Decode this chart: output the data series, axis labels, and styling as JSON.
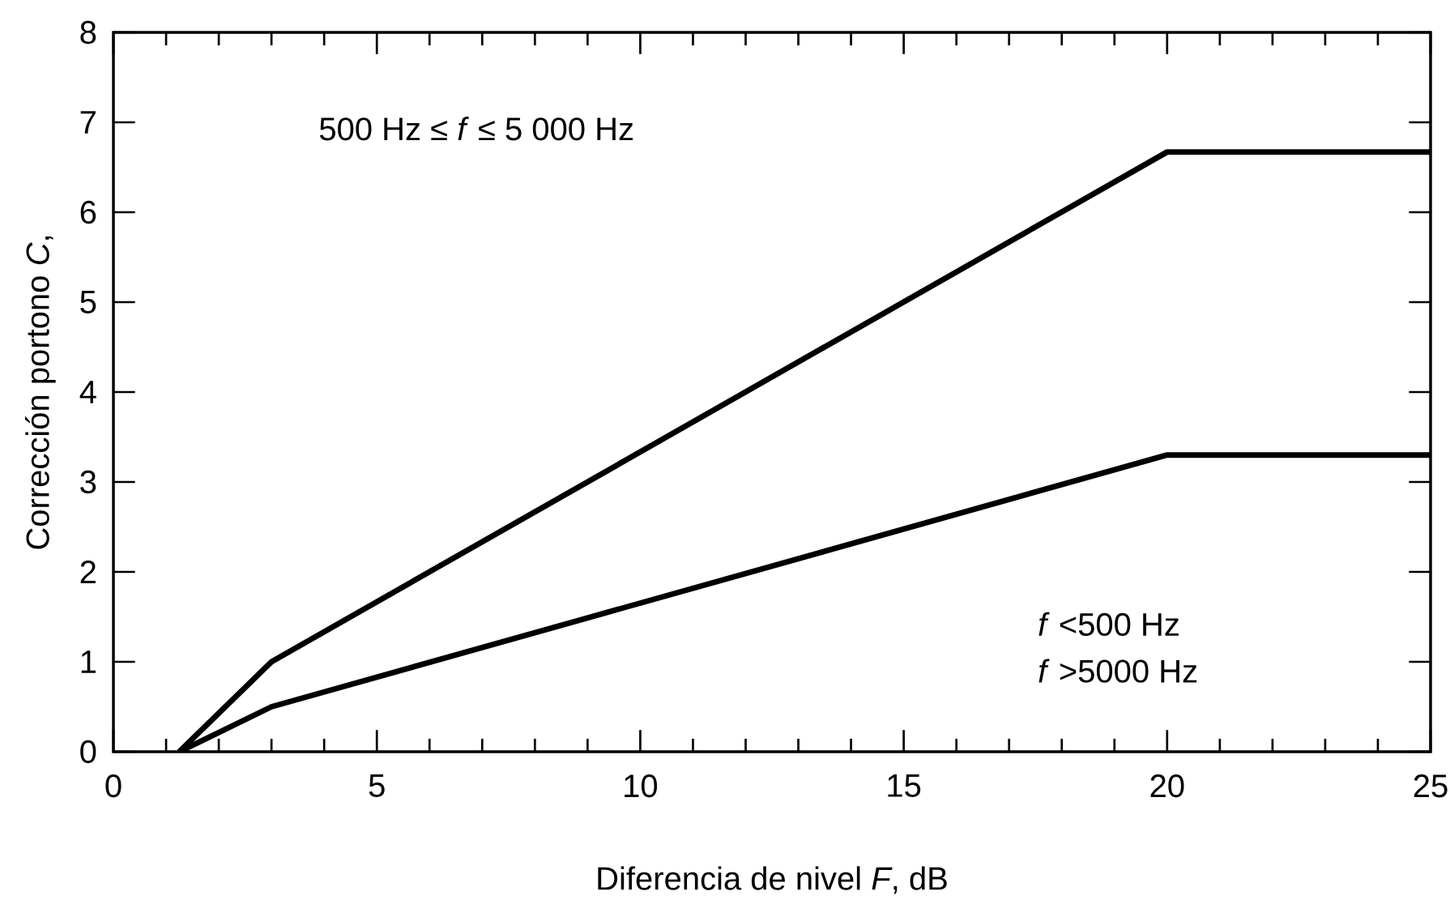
{
  "chart_data": {
    "type": "line",
    "xlabel": "Diferencia de nivel *F*, dB",
    "ylabel": "Corrección portono *C*,",
    "annotations": [
      "500 Hz ≤ *f* ≤ 5 000 Hz",
      "*f* <500 Hz",
      "*f* >5000 Hz"
    ],
    "series": [
      {
        "color": "#000000",
        "x": [
          1.25,
          3,
          20,
          25
        ],
        "values": [
          0,
          1,
          6.67,
          6.67
        ]
      },
      {
        "color": "#000000",
        "x": [
          1.25,
          3,
          20,
          25
        ],
        "values": [
          0,
          0.5,
          3.3,
          3.3
        ]
      }
    ],
    "xlim": [
      0,
      25
    ],
    "ylim": [
      0,
      8
    ],
    "xticks": [
      0,
      {
        "value": 1,
        "label": null
      },
      {
        "value": 2,
        "label": null
      },
      {
        "value": 3,
        "label": null
      },
      {
        "value": 4,
        "label": null
      },
      5,
      {
        "value": 6,
        "label": null
      },
      {
        "value": 7,
        "label": null
      },
      {
        "value": 8,
        "label": null
      },
      {
        "value": 9,
        "label": null
      },
      10,
      {
        "value": 11,
        "label": null
      },
      {
        "value": 12,
        "label": null
      },
      {
        "value": 13,
        "label": null
      },
      {
        "value": 14,
        "label": null
      },
      15,
      {
        "value": 16,
        "label": null
      },
      {
        "value": 17,
        "label": null
      },
      {
        "value": 18,
        "label": null
      },
      {
        "value": 19,
        "label": null
      },
      20,
      {
        "value": 21,
        "label": null
      },
      {
        "value": 22,
        "label": null
      },
      {
        "value": 23,
        "label": null
      },
      {
        "value": 24,
        "label": null
      },
      25
    ],
    "yticks": [
      0,
      1,
      2,
      3,
      4,
      5,
      6,
      7,
      8
    ],
    "marker": "none",
    "line_style": "solid"
  }
}
